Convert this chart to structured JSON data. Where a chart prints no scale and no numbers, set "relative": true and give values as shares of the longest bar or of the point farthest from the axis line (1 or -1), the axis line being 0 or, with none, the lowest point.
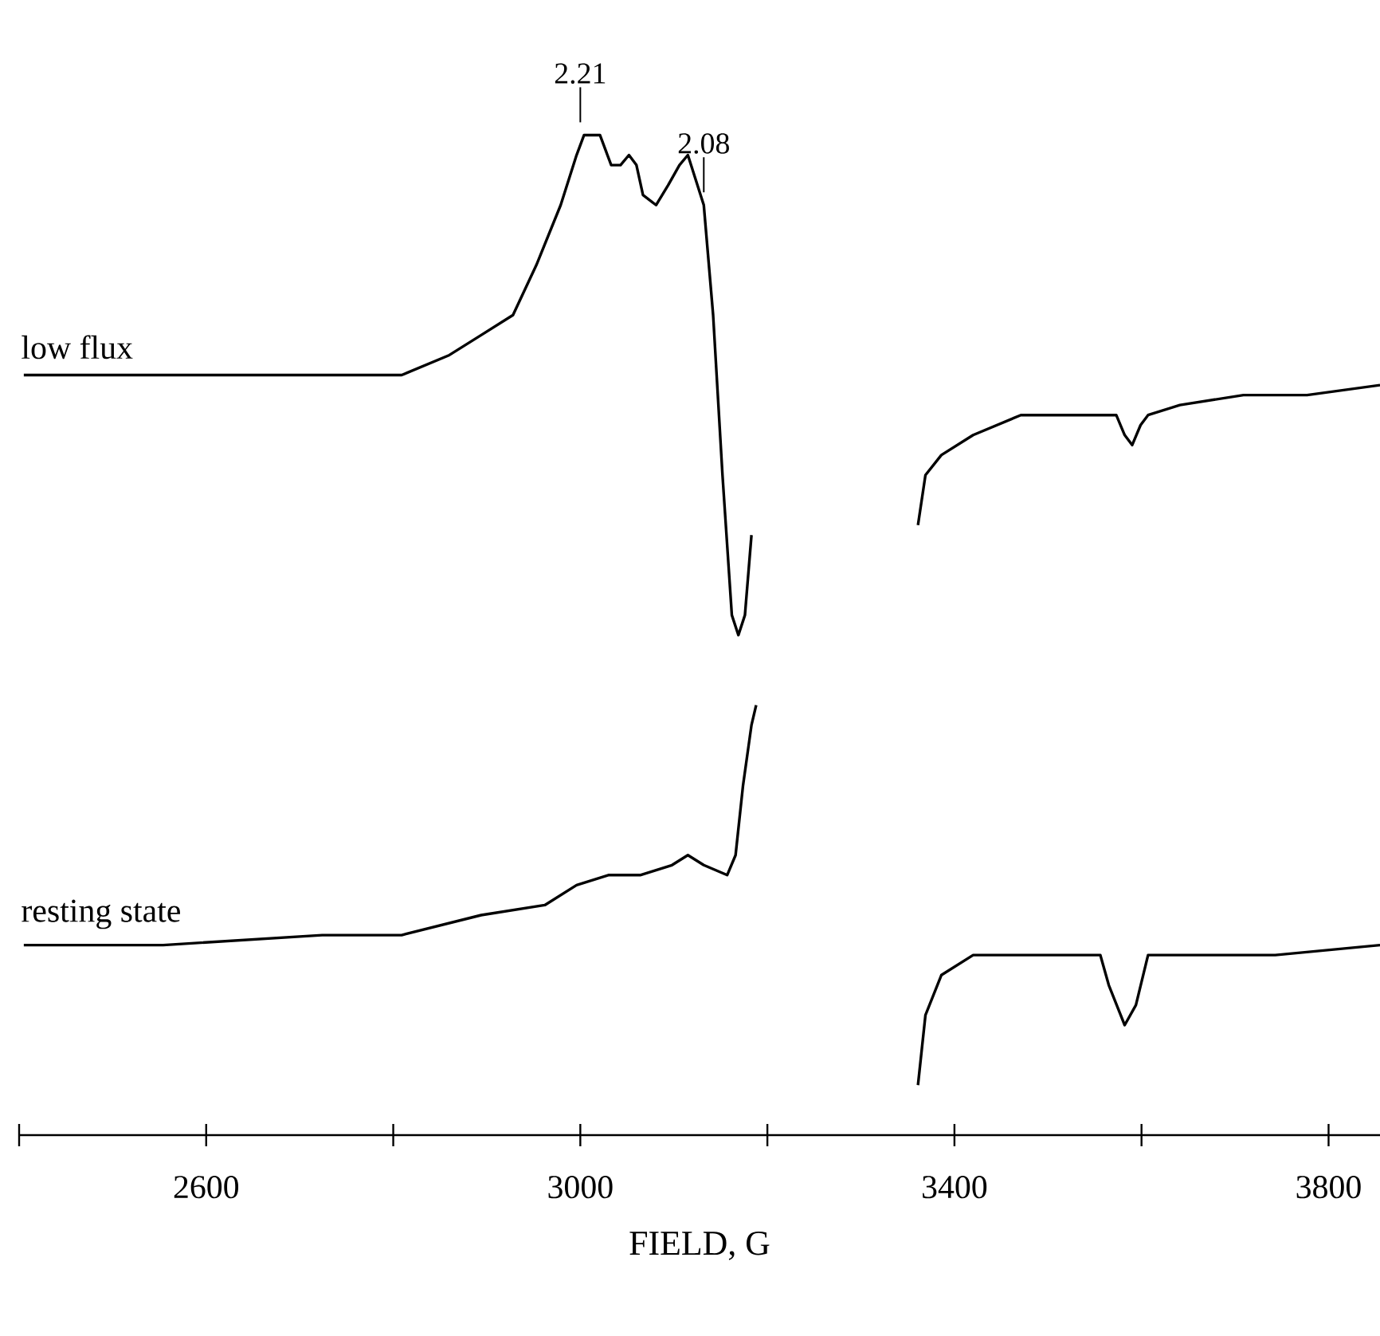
{
  "chart_data": {
    "type": "line",
    "relative": true,
    "xlabel": "FIELD, G",
    "xlim": [
      2400,
      3855
    ],
    "xticks": [
      {
        "value": 2400,
        "label": null
      },
      2600,
      {
        "value": 2800,
        "label": null
      },
      3000,
      {
        "value": 3200,
        "label": null
      },
      3400,
      {
        "value": 3600,
        "label": null
      },
      3800
    ],
    "tick_labels": "x",
    "grid": false,
    "marker": "none",
    "line_style": "solid",
    "annotations": [
      {
        "text": "2.21",
        "x": 3000,
        "y": 1.0
      },
      {
        "text": "2.08",
        "x": 3132,
        "y": 0.93
      }
    ],
    "series": [
      {
        "name": "low flux",
        "color": "#000000",
        "x": [
          2405,
          2554,
          2724,
          2809,
          2860,
          2894,
          2928,
          2953,
          2979,
          2996,
          3004,
          3021,
          3033,
          3043,
          3052,
          3060,
          3067,
          3081,
          3094,
          3106,
          3115,
          3132,
          3142,
          3152,
          3162,
          3169,
          3176,
          3183,
          3270,
          3361,
          3369,
          3386,
          3420,
          3471,
          3522,
          3556,
          3573,
          3582,
          3590,
          3599,
          3607,
          3641,
          3709,
          3777,
          3855
        ],
        "values": [
          0.76,
          0.76,
          0.76,
          0.76,
          0.78,
          0.8,
          0.82,
          0.87,
          0.93,
          0.98,
          1.0,
          1.0,
          0.97,
          0.97,
          0.98,
          0.97,
          0.94,
          0.93,
          0.95,
          0.97,
          0.98,
          0.93,
          0.82,
          0.66,
          0.52,
          0.5,
          0.52,
          0.6,
          null,
          0.61,
          0.66,
          0.68,
          0.7,
          0.72,
          0.72,
          0.72,
          0.72,
          0.7,
          0.69,
          0.71,
          0.72,
          0.73,
          0.74,
          0.74,
          0.75
        ]
      },
      {
        "name": "resting state",
        "color": "#000000",
        "x": [
          2405,
          2554,
          2724,
          2809,
          2894,
          2962,
          2996,
          3030,
          3064,
          3098,
          3115,
          3132,
          3157,
          3166,
          3174,
          3183,
          3188,
          3270,
          3361,
          3369,
          3386,
          3420,
          3471,
          3539,
          3556,
          3565,
          3582,
          3594,
          3607,
          3641,
          3743,
          3855
        ],
        "values": [
          0.19,
          0.19,
          0.2,
          0.2,
          0.22,
          0.23,
          0.25,
          0.26,
          0.26,
          0.27,
          0.28,
          0.27,
          0.26,
          0.28,
          0.35,
          0.41,
          0.43,
          null,
          0.05,
          0.12,
          0.16,
          0.18,
          0.18,
          0.18,
          0.18,
          0.15,
          0.11,
          0.13,
          0.18,
          0.18,
          0.18,
          0.19
        ]
      }
    ]
  }
}
